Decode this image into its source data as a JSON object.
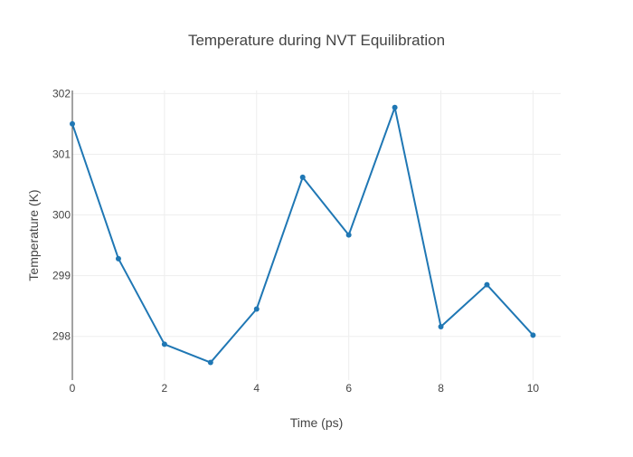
{
  "chart_data": {
    "type": "line",
    "title": "Temperature during NVT Equilibration",
    "xlabel": "Time (ps)",
    "ylabel": "Temperature (K)",
    "x": [
      0,
      1,
      2,
      3,
      4,
      5,
      6,
      7,
      8,
      9,
      10
    ],
    "series": [
      {
        "values": [
          301.5,
          299.28,
          297.87,
          297.57,
          298.45,
          300.62,
          299.67,
          301.77,
          298.16,
          298.85,
          298.02
        ],
        "color": "#1f77b4"
      }
    ],
    "xlim": [
      0,
      10.6
    ],
    "ylim": [
      297.28,
      302.05
    ],
    "x_ticks": [
      0,
      2,
      4,
      6,
      8,
      10
    ],
    "y_ticks": [
      298,
      299,
      300,
      301,
      302
    ],
    "grid": true,
    "markers": true,
    "colors": {
      "line": "#1f77b4",
      "grid": "#eeeeee",
      "zeroline": "#444444",
      "text": "#444444"
    }
  }
}
